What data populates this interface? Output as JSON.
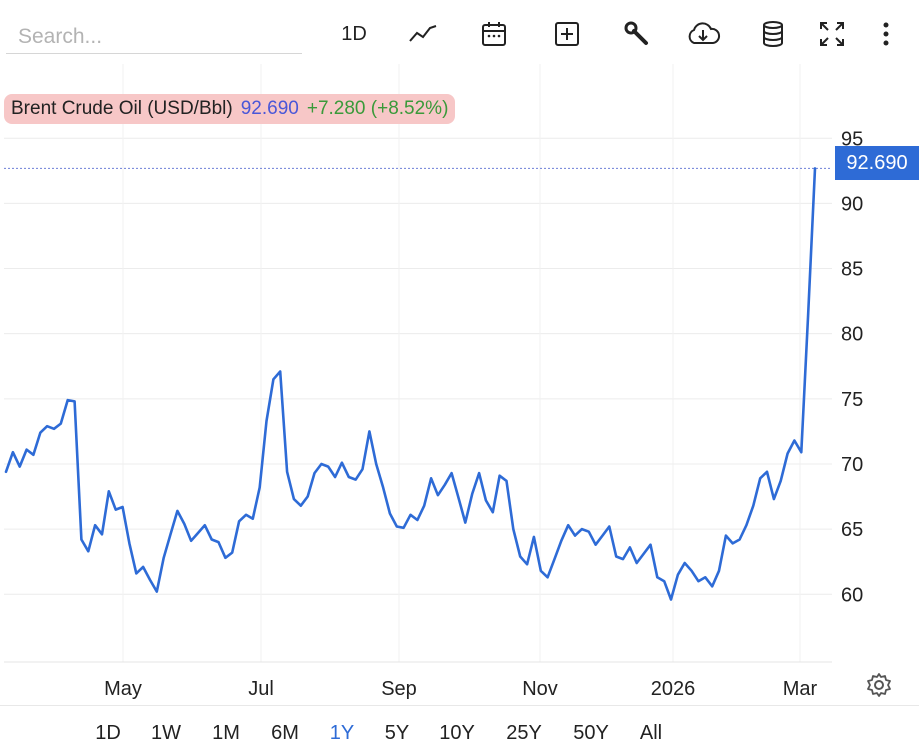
{
  "toolbar": {
    "search_placeholder": "Search...",
    "interval_label": "1D",
    "icons": [
      "line-chart-icon",
      "calendar-icon",
      "add-indicator-icon",
      "wrench-icon",
      "cloud-download-icon",
      "database-icon",
      "fullscreen-icon",
      "more-vertical-icon"
    ]
  },
  "legend": {
    "name": "Brent Crude Oil (USD/Bbl)",
    "value": "92.690",
    "change": "+7.280 (+8.52%)",
    "background": "#f7c7c7"
  },
  "price_tag": "92.690",
  "colors": {
    "line": "#2e6bd6",
    "accent": "#2e6bd6",
    "value": "#4a57d8",
    "change": "#3a9a3a"
  },
  "chart_data": {
    "type": "line",
    "series": [
      {
        "name": "Brent Crude Oil (USD/Bbl)",
        "values": [
          69.4,
          70.9,
          69.8,
          71.1,
          70.7,
          72.4,
          72.9,
          72.7,
          73.1,
          74.9,
          74.8,
          64.2,
          63.3,
          65.3,
          64.6,
          67.9,
          66.5,
          66.7,
          63.9,
          61.6,
          62.1,
          61.1,
          60.2,
          62.8,
          64.6,
          66.4,
          65.4,
          64.1,
          64.7,
          65.3,
          64.2,
          64.0,
          62.8,
          63.2,
          65.6,
          66.1,
          65.8,
          68.2,
          73.3,
          76.5,
          77.1,
          69.4,
          67.3,
          66.8,
          67.5,
          69.3,
          70.0,
          69.8,
          69.0,
          70.1,
          69.0,
          68.8,
          69.6,
          72.5,
          70.0,
          68.2,
          66.2,
          65.2,
          65.1,
          66.1,
          65.7,
          66.8,
          68.9,
          67.6,
          68.4,
          69.3,
          67.4,
          65.5,
          67.7,
          69.3,
          67.2,
          66.3,
          69.1,
          68.7,
          65.0,
          62.9,
          62.3,
          64.4,
          61.8,
          61.3,
          62.7,
          64.1,
          65.3,
          64.5,
          65.0,
          64.8,
          63.8,
          64.5,
          65.2,
          62.9,
          62.7,
          63.6,
          62.4,
          63.1,
          63.8,
          61.3,
          61.0,
          59.6,
          61.5,
          62.4,
          61.8,
          61.0,
          61.3,
          60.6,
          61.8,
          64.5,
          63.9,
          64.2,
          65.3,
          66.8,
          68.9,
          69.4,
          67.3,
          68.7,
          70.8,
          71.8,
          70.9,
          81.4,
          92.69
        ]
      }
    ],
    "x_tick_labels": [
      "May",
      "Jul",
      "Sep",
      "Nov",
      "2026",
      "Mar"
    ],
    "y_ticks": [
      60,
      65,
      70,
      75,
      80,
      85,
      90,
      95
    ],
    "ylim": [
      54.8,
      100.7
    ],
    "current_value": 92.69,
    "grid": true,
    "title": "",
    "xlabel": "",
    "ylabel": ""
  },
  "ranges": {
    "items": [
      "1D",
      "1W",
      "1M",
      "6M",
      "1Y",
      "5Y",
      "10Y",
      "25Y",
      "50Y",
      "All"
    ],
    "active": "1Y"
  }
}
